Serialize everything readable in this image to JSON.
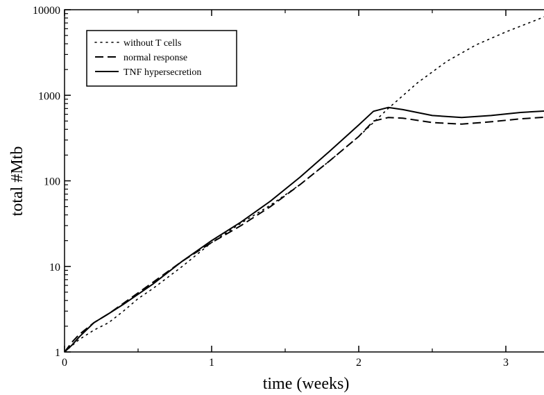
{
  "chart_data": {
    "type": "line",
    "xlabel": "time (weeks)",
    "ylabel": "total #Mtb",
    "xlim": [
      0,
      3.3
    ],
    "ylim": [
      1,
      10000
    ],
    "yscale": "log",
    "grid": false,
    "legend_position": "top-left",
    "x_ticks": [
      {
        "value": 0,
        "label": "0"
      },
      {
        "value": 1,
        "label": "1"
      },
      {
        "value": 2,
        "label": "2"
      },
      {
        "value": 3,
        "label": "3"
      }
    ],
    "y_ticks": [
      {
        "value": 1,
        "label": "1"
      },
      {
        "value": 10,
        "label": "10"
      },
      {
        "value": 100,
        "label": "100"
      },
      {
        "value": 1000,
        "label": "1000"
      },
      {
        "value": 10000,
        "label": "10000"
      }
    ],
    "series": [
      {
        "name": "without T cells",
        "style": "dotted",
        "x": [
          0,
          0.1,
          0.2,
          0.3,
          0.4,
          0.5,
          0.6,
          0.8,
          1.0,
          1.2,
          1.4,
          1.6,
          1.8,
          2.0,
          2.2,
          2.4,
          2.6,
          2.8,
          3.0,
          3.2,
          3.3
        ],
        "y": [
          1,
          1.4,
          1.8,
          2.2,
          3,
          4.2,
          5.5,
          10,
          19,
          32,
          52,
          90,
          170,
          330,
          700,
          1400,
          2500,
          3900,
          5500,
          7500,
          8800
        ]
      },
      {
        "name": "normal response",
        "style": "dashed",
        "x": [
          0,
          0.05,
          0.1,
          0.2,
          0.3,
          0.4,
          0.6,
          0.8,
          1.0,
          1.2,
          1.4,
          1.6,
          1.8,
          2.0,
          2.1,
          2.2,
          2.3,
          2.5,
          2.7,
          2.9,
          3.1,
          3.3
        ],
        "y": [
          1,
          1.3,
          1.6,
          2.2,
          2.8,
          3.7,
          6.5,
          11.5,
          19,
          30,
          50,
          90,
          170,
          330,
          500,
          550,
          540,
          480,
          460,
          490,
          530,
          560
        ]
      },
      {
        "name": "TNF hypersecretion",
        "style": "solid",
        "x": [
          0,
          0.05,
          0.1,
          0.2,
          0.3,
          0.4,
          0.6,
          0.8,
          1.0,
          1.2,
          1.4,
          1.6,
          1.8,
          2.0,
          2.1,
          2.2,
          2.3,
          2.5,
          2.7,
          2.9,
          3.1,
          3.3
        ],
        "y": [
          1,
          1.2,
          1.5,
          2.2,
          2.8,
          3.6,
          6.2,
          11.5,
          20,
          33,
          58,
          110,
          220,
          450,
          650,
          720,
          680,
          580,
          550,
          580,
          630,
          660
        ]
      }
    ]
  }
}
